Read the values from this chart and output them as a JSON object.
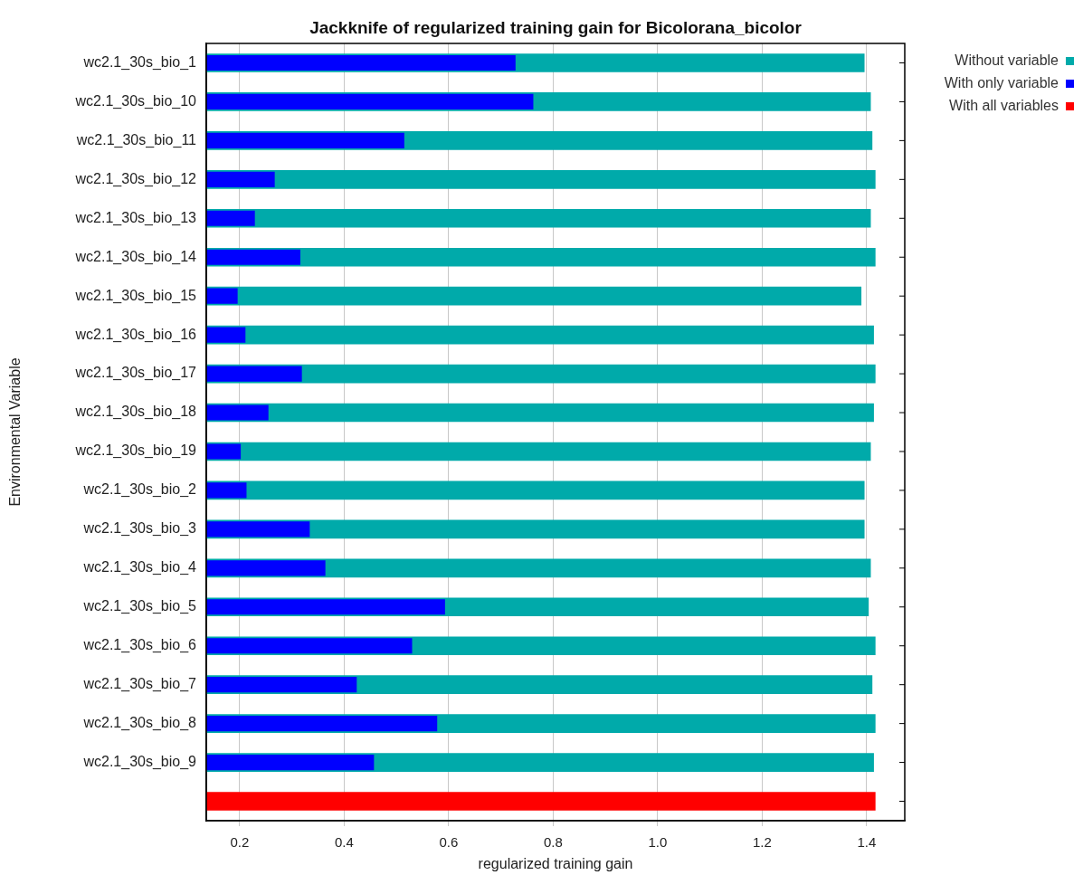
{
  "chart_data": {
    "type": "bar",
    "orientation": "horizontal",
    "title": "Jackknife of regularized training gain for Bicolorana_bicolor",
    "xlabel": "regularized training gain",
    "ylabel": "Environmental Variable",
    "categories": [
      "wc2.1_30s_bio_1",
      "wc2.1_30s_bio_10",
      "wc2.1_30s_bio_11",
      "wc2.1_30s_bio_12",
      "wc2.1_30s_bio_13",
      "wc2.1_30s_bio_14",
      "wc2.1_30s_bio_15",
      "wc2.1_30s_bio_16",
      "wc2.1_30s_bio_17",
      "wc2.1_30s_bio_18",
      "wc2.1_30s_bio_19",
      "wc2.1_30s_bio_2",
      "wc2.1_30s_bio_3",
      "wc2.1_30s_bio_4",
      "wc2.1_30s_bio_5",
      "wc2.1_30s_bio_6",
      "wc2.1_30s_bio_7",
      "wc2.1_30s_bio_8",
      "wc2.1_30s_bio_9",
      null
    ],
    "series": [
      {
        "name": "Without variable",
        "color": "#00aaaa",
        "values": [
          1.396,
          1.408,
          1.411,
          1.417,
          1.408,
          1.417,
          1.39,
          1.414,
          1.417,
          1.414,
          1.408,
          1.396,
          1.396,
          1.408,
          1.404,
          1.417,
          1.411,
          1.417,
          1.414,
          null
        ]
      },
      {
        "name": "With only variable",
        "color": "#0000ff",
        "values": [
          0.728,
          0.762,
          0.515,
          0.267,
          0.229,
          0.316,
          0.196,
          0.211,
          0.319,
          0.255,
          0.202,
          0.213,
          0.334,
          0.364,
          0.593,
          0.53,
          0.424,
          0.578,
          0.457,
          null
        ]
      },
      {
        "name": "With all variables",
        "color": "#ff0000",
        "values": [
          null,
          null,
          null,
          null,
          null,
          null,
          null,
          null,
          null,
          null,
          null,
          null,
          null,
          null,
          null,
          null,
          null,
          null,
          null,
          1.417
        ]
      }
    ],
    "xlim": [
      0.136,
      1.473
    ],
    "xticks": [
      {
        "value": 0.2,
        "label": "0.2"
      },
      {
        "value": 0.4,
        "label": "0.4"
      },
      {
        "value": 0.6,
        "label": "0.6"
      },
      {
        "value": 0.8,
        "label": "0.8"
      },
      {
        "value": 1.0,
        "label": "1.0"
      },
      {
        "value": 1.2,
        "label": "1.2"
      },
      {
        "value": 1.4,
        "label": "1.4"
      }
    ],
    "grid": "x",
    "legend": "top right"
  }
}
